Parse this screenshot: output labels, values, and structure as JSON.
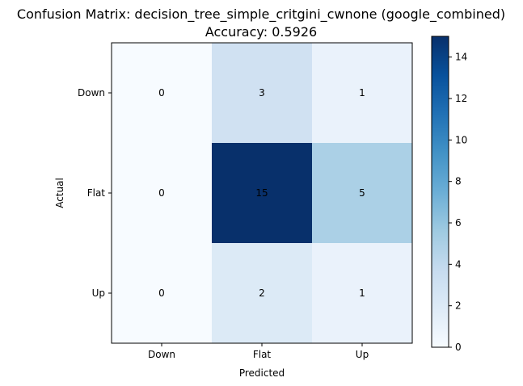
{
  "chart_data": {
    "type": "heatmap",
    "title": "Confusion Matrix: decision_tree_simple_critgini_cwnone (google_combined)",
    "subtitle": "Accuracy: 0.5926",
    "xlabel": "Predicted",
    "ylabel": "Actual",
    "x_categories": [
      "Down",
      "Flat",
      "Up"
    ],
    "y_categories": [
      "Down",
      "Flat",
      "Up"
    ],
    "values": [
      [
        0,
        3,
        1
      ],
      [
        0,
        15,
        5
      ],
      [
        0,
        2,
        1
      ]
    ],
    "colormap": "Blues",
    "colorbar": {
      "range": [
        0,
        15
      ],
      "ticks": [
        0,
        2,
        4,
        6,
        8,
        10,
        12,
        14
      ]
    },
    "colors": {
      "low": "#f7fbff",
      "high": "#08306b"
    }
  }
}
